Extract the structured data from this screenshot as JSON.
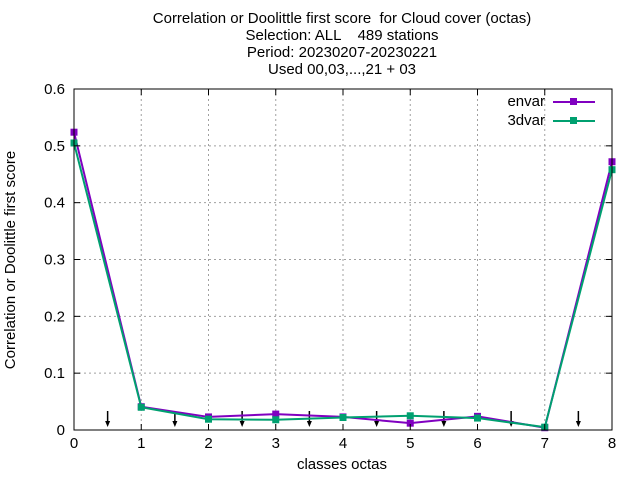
{
  "title_lines": [
    "Correlation or Doolittle first score  for Cloud cover (octas)",
    "Selection: ALL    489 stations",
    "Period: 20230207-20230221",
    "Used 00,03,...,21 + 03"
  ],
  "colors": {
    "envar": "#8000c0",
    "3dvar": "#00a070",
    "grid": "#a0a0a0",
    "axis": "#000000"
  },
  "chart_data": {
    "type": "line",
    "xlabel": "classes octas",
    "ylabel": "Correlation or Doolittle first score",
    "xlim": [
      0,
      8
    ],
    "ylim": [
      0,
      0.6
    ],
    "x_ticks": [
      "0",
      "1",
      "2",
      "3",
      "4",
      "5",
      "6",
      "7",
      "8"
    ],
    "y_ticks": [
      "0",
      "0.1",
      "0.2",
      "0.3",
      "0.4",
      "0.5",
      "0.6"
    ],
    "grid": true,
    "legend_position": "top-right",
    "x": [
      0,
      1,
      2,
      3,
      4,
      5,
      6,
      7,
      8
    ],
    "series": [
      {
        "name": "envar",
        "color": "#8000c0",
        "values": [
          0.524,
          0.041,
          0.023,
          0.028,
          0.023,
          0.012,
          0.024,
          0.004,
          0.472
        ]
      },
      {
        "name": "3dvar",
        "color": "#00a070",
        "values": [
          0.505,
          0.04,
          0.019,
          0.018,
          0.022,
          0.025,
          0.021,
          0.005,
          0.458
        ]
      }
    ],
    "arrow_markers_x": [
      0.5,
      1.5,
      2.5,
      3.5,
      4.5,
      5.5,
      6.5,
      7.5
    ]
  }
}
